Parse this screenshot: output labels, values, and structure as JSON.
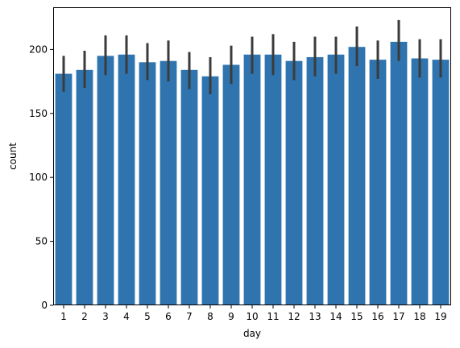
{
  "chart_data": {
    "type": "bar",
    "xlabel": "day",
    "ylabel": "count",
    "categories": [
      "1",
      "2",
      "3",
      "4",
      "5",
      "6",
      "7",
      "8",
      "9",
      "10",
      "11",
      "12",
      "13",
      "14",
      "15",
      "16",
      "17",
      "18",
      "19"
    ],
    "values": [
      181,
      184,
      195,
      196,
      190,
      191,
      184,
      179,
      188,
      196,
      196,
      191,
      194,
      196,
      202,
      192,
      206,
      193,
      192
    ],
    "error_low": [
      167,
      170,
      180,
      181,
      176,
      175,
      169,
      165,
      173,
      181,
      180,
      176,
      179,
      181,
      187,
      177,
      191,
      178,
      178
    ],
    "error_high": [
      195,
      199,
      211,
      211,
      205,
      207,
      198,
      194,
      203,
      210,
      212,
      206,
      210,
      210,
      218,
      207,
      223,
      208,
      208
    ],
    "ylim": [
      0,
      233
    ],
    "yticks": [
      0,
      50,
      100,
      150,
      200
    ],
    "bar_color": "#2f74ae",
    "error_color": "#3b3b3b",
    "grid": false
  }
}
